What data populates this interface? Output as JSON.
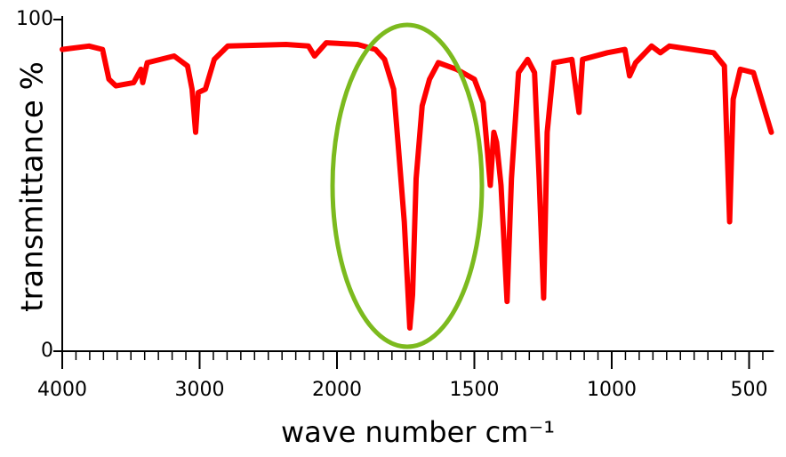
{
  "chart_data": {
    "type": "line",
    "xlabel": "wave number cm⁻¹",
    "ylabel": "transmittance %",
    "xlim": [
      4000,
      410
    ],
    "xticks": [
      4000,
      3000,
      2000,
      1500,
      1000,
      500
    ],
    "ylim": [
      0,
      100
    ],
    "yticks": [
      0,
      100
    ],
    "series": [
      {
        "color": "#ff0000",
        "x": [
          4000,
          3805,
          3707,
          3660,
          3609,
          3480,
          3427,
          3414,
          3381,
          3186,
          3088,
          3055,
          3029,
          3010,
          2958,
          2893,
          2795,
          2371,
          2208,
          2163,
          2078,
          1925,
          1860,
          1827,
          1794,
          1778,
          1755,
          1735,
          1725,
          1712,
          1690,
          1663,
          1631,
          1565,
          1500,
          1468,
          1452,
          1442,
          1429,
          1419,
          1403,
          1381,
          1365,
          1339,
          1306,
          1281,
          1264,
          1248,
          1235,
          1210,
          1145,
          1119,
          1106,
          1016,
          952,
          935,
          913,
          855,
          823,
          790,
          629,
          590,
          571,
          558,
          532,
          484,
          419
        ],
        "values": [
          91,
          92,
          91,
          82,
          80,
          81,
          85,
          81,
          87,
          89,
          86,
          79,
          66,
          78,
          79,
          88,
          92,
          92.5,
          92,
          89,
          93,
          92.5,
          91,
          88,
          79,
          63,
          39,
          7,
          17,
          52,
          74,
          82,
          87,
          85,
          82,
          75,
          60,
          50,
          66,
          63,
          50,
          15,
          52,
          84,
          88,
          84,
          52,
          16,
          66,
          87,
          88,
          72,
          88,
          90,
          91,
          83,
          87,
          92,
          90,
          92,
          90,
          86,
          39,
          76,
          85,
          84,
          66
        ]
      }
    ]
  }
}
